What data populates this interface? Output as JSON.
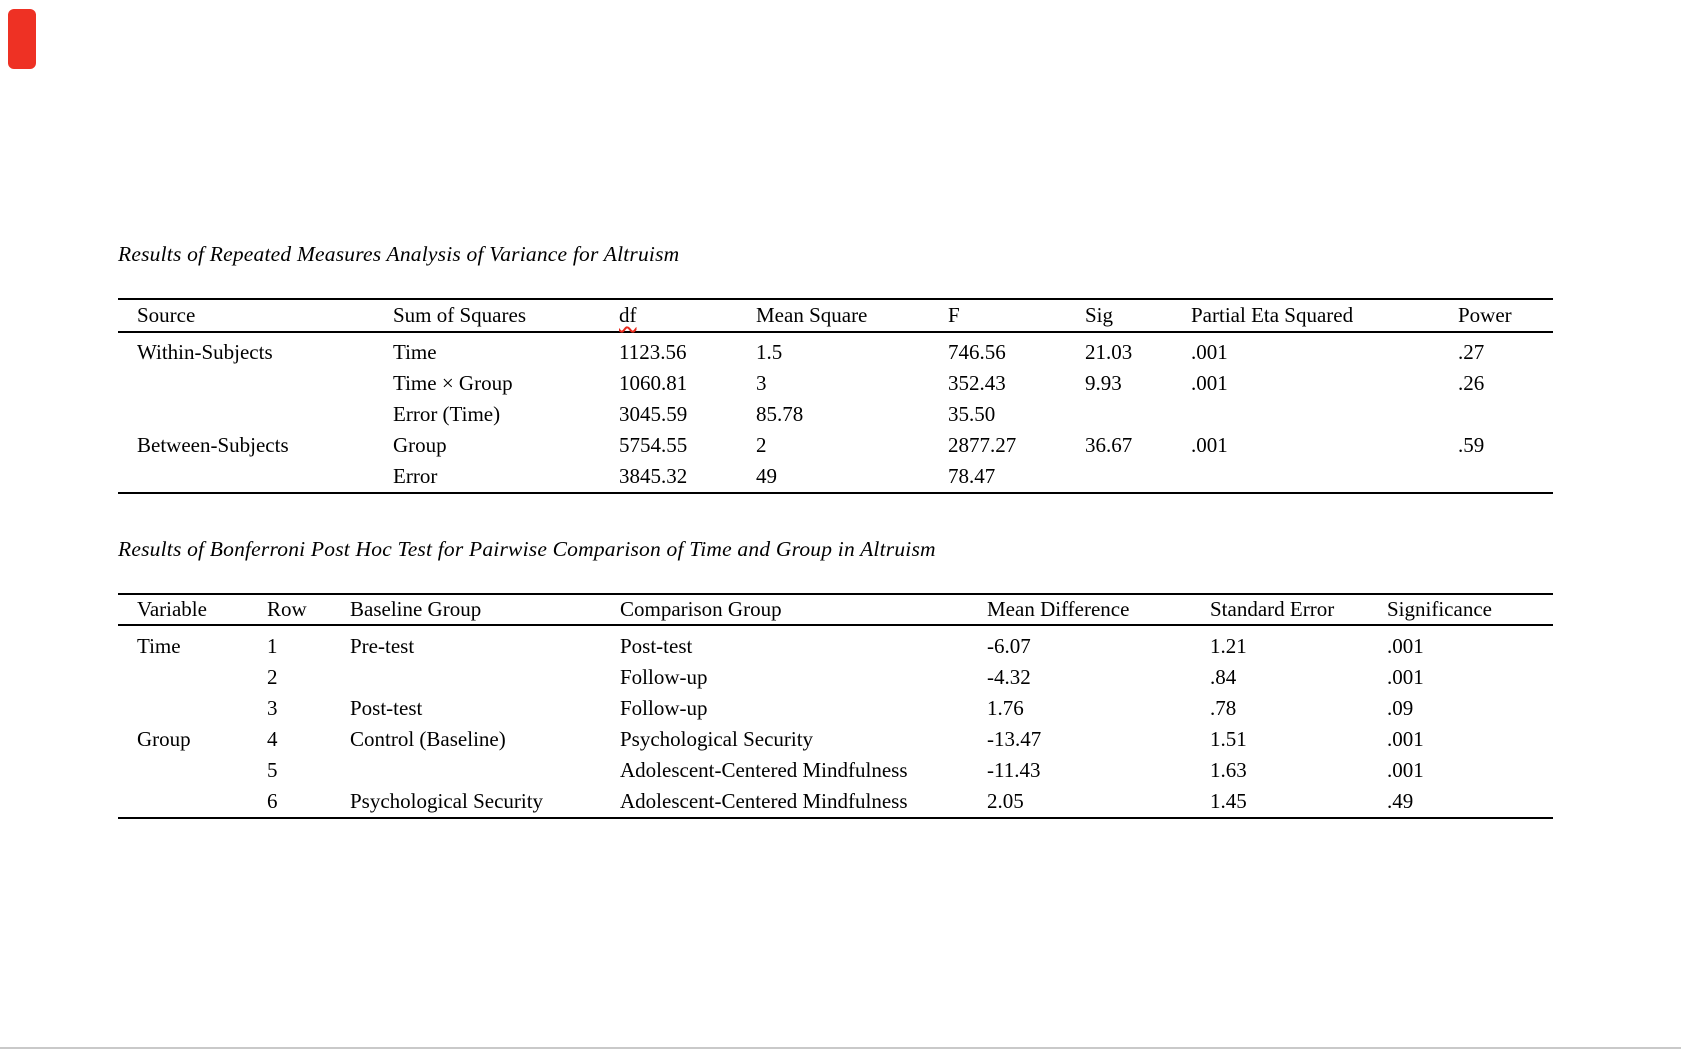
{
  "colors": {
    "marker_red": "#ee3124",
    "spellcheck_red": "#e8291c",
    "divider_gray": "#c9c9c9",
    "text": "#000000"
  },
  "anova": {
    "title": "Results of Repeated Measures Analysis of Variance for Altruism",
    "headers": [
      "Source",
      "Sum of Squares",
      "df",
      "Mean Square",
      "F",
      "Sig",
      "Partial Eta Squared",
      "Power"
    ],
    "rows": [
      [
        "Within-Subjects",
        "Time",
        "1123.56",
        "1.5",
        "746.56",
        "21.03",
        ".001",
        ".27"
      ],
      [
        "",
        "Time × Group",
        "1060.81",
        "3",
        "352.43",
        "9.93",
        ".001",
        ".26"
      ],
      [
        "",
        "Error (Time)",
        "3045.59",
        "85.78",
        "35.50",
        "",
        "",
        ""
      ],
      [
        "Between-Subjects",
        "Group",
        "5754.55",
        "2",
        "2877.27",
        "36.67",
        ".001",
        ".59"
      ],
      [
        "",
        "Error",
        "3845.32",
        "49",
        "78.47",
        "",
        "",
        ""
      ]
    ]
  },
  "posthoc": {
    "title": "Results of Bonferroni Post Hoc Test for Pairwise Comparison of Time and Group in Altruism",
    "headers": [
      "Variable",
      "Row",
      "Baseline Group",
      "Comparison Group",
      "Mean Difference",
      "Standard Error",
      "Significance"
    ],
    "rows": [
      [
        "Time",
        "1",
        "Pre-test",
        "Post-test",
        "-6.07",
        "1.21",
        ".001"
      ],
      [
        "",
        "2",
        "",
        "Follow-up",
        "-4.32",
        ".84",
        ".001"
      ],
      [
        "",
        "3",
        "Post-test",
        "Follow-up",
        "1.76",
        ".78",
        ".09"
      ],
      [
        "Group",
        "4",
        "Control (Baseline)",
        "Psychological Security",
        "-13.47",
        "1.51",
        ".001"
      ],
      [
        "",
        "5",
        "",
        "Adolescent-Centered Mindfulness",
        "-11.43",
        "1.63",
        ".001"
      ],
      [
        "",
        "6",
        "Psychological Security",
        "Adolescent-Centered Mindfulness",
        "2.05",
        "1.45",
        ".49"
      ]
    ]
  }
}
